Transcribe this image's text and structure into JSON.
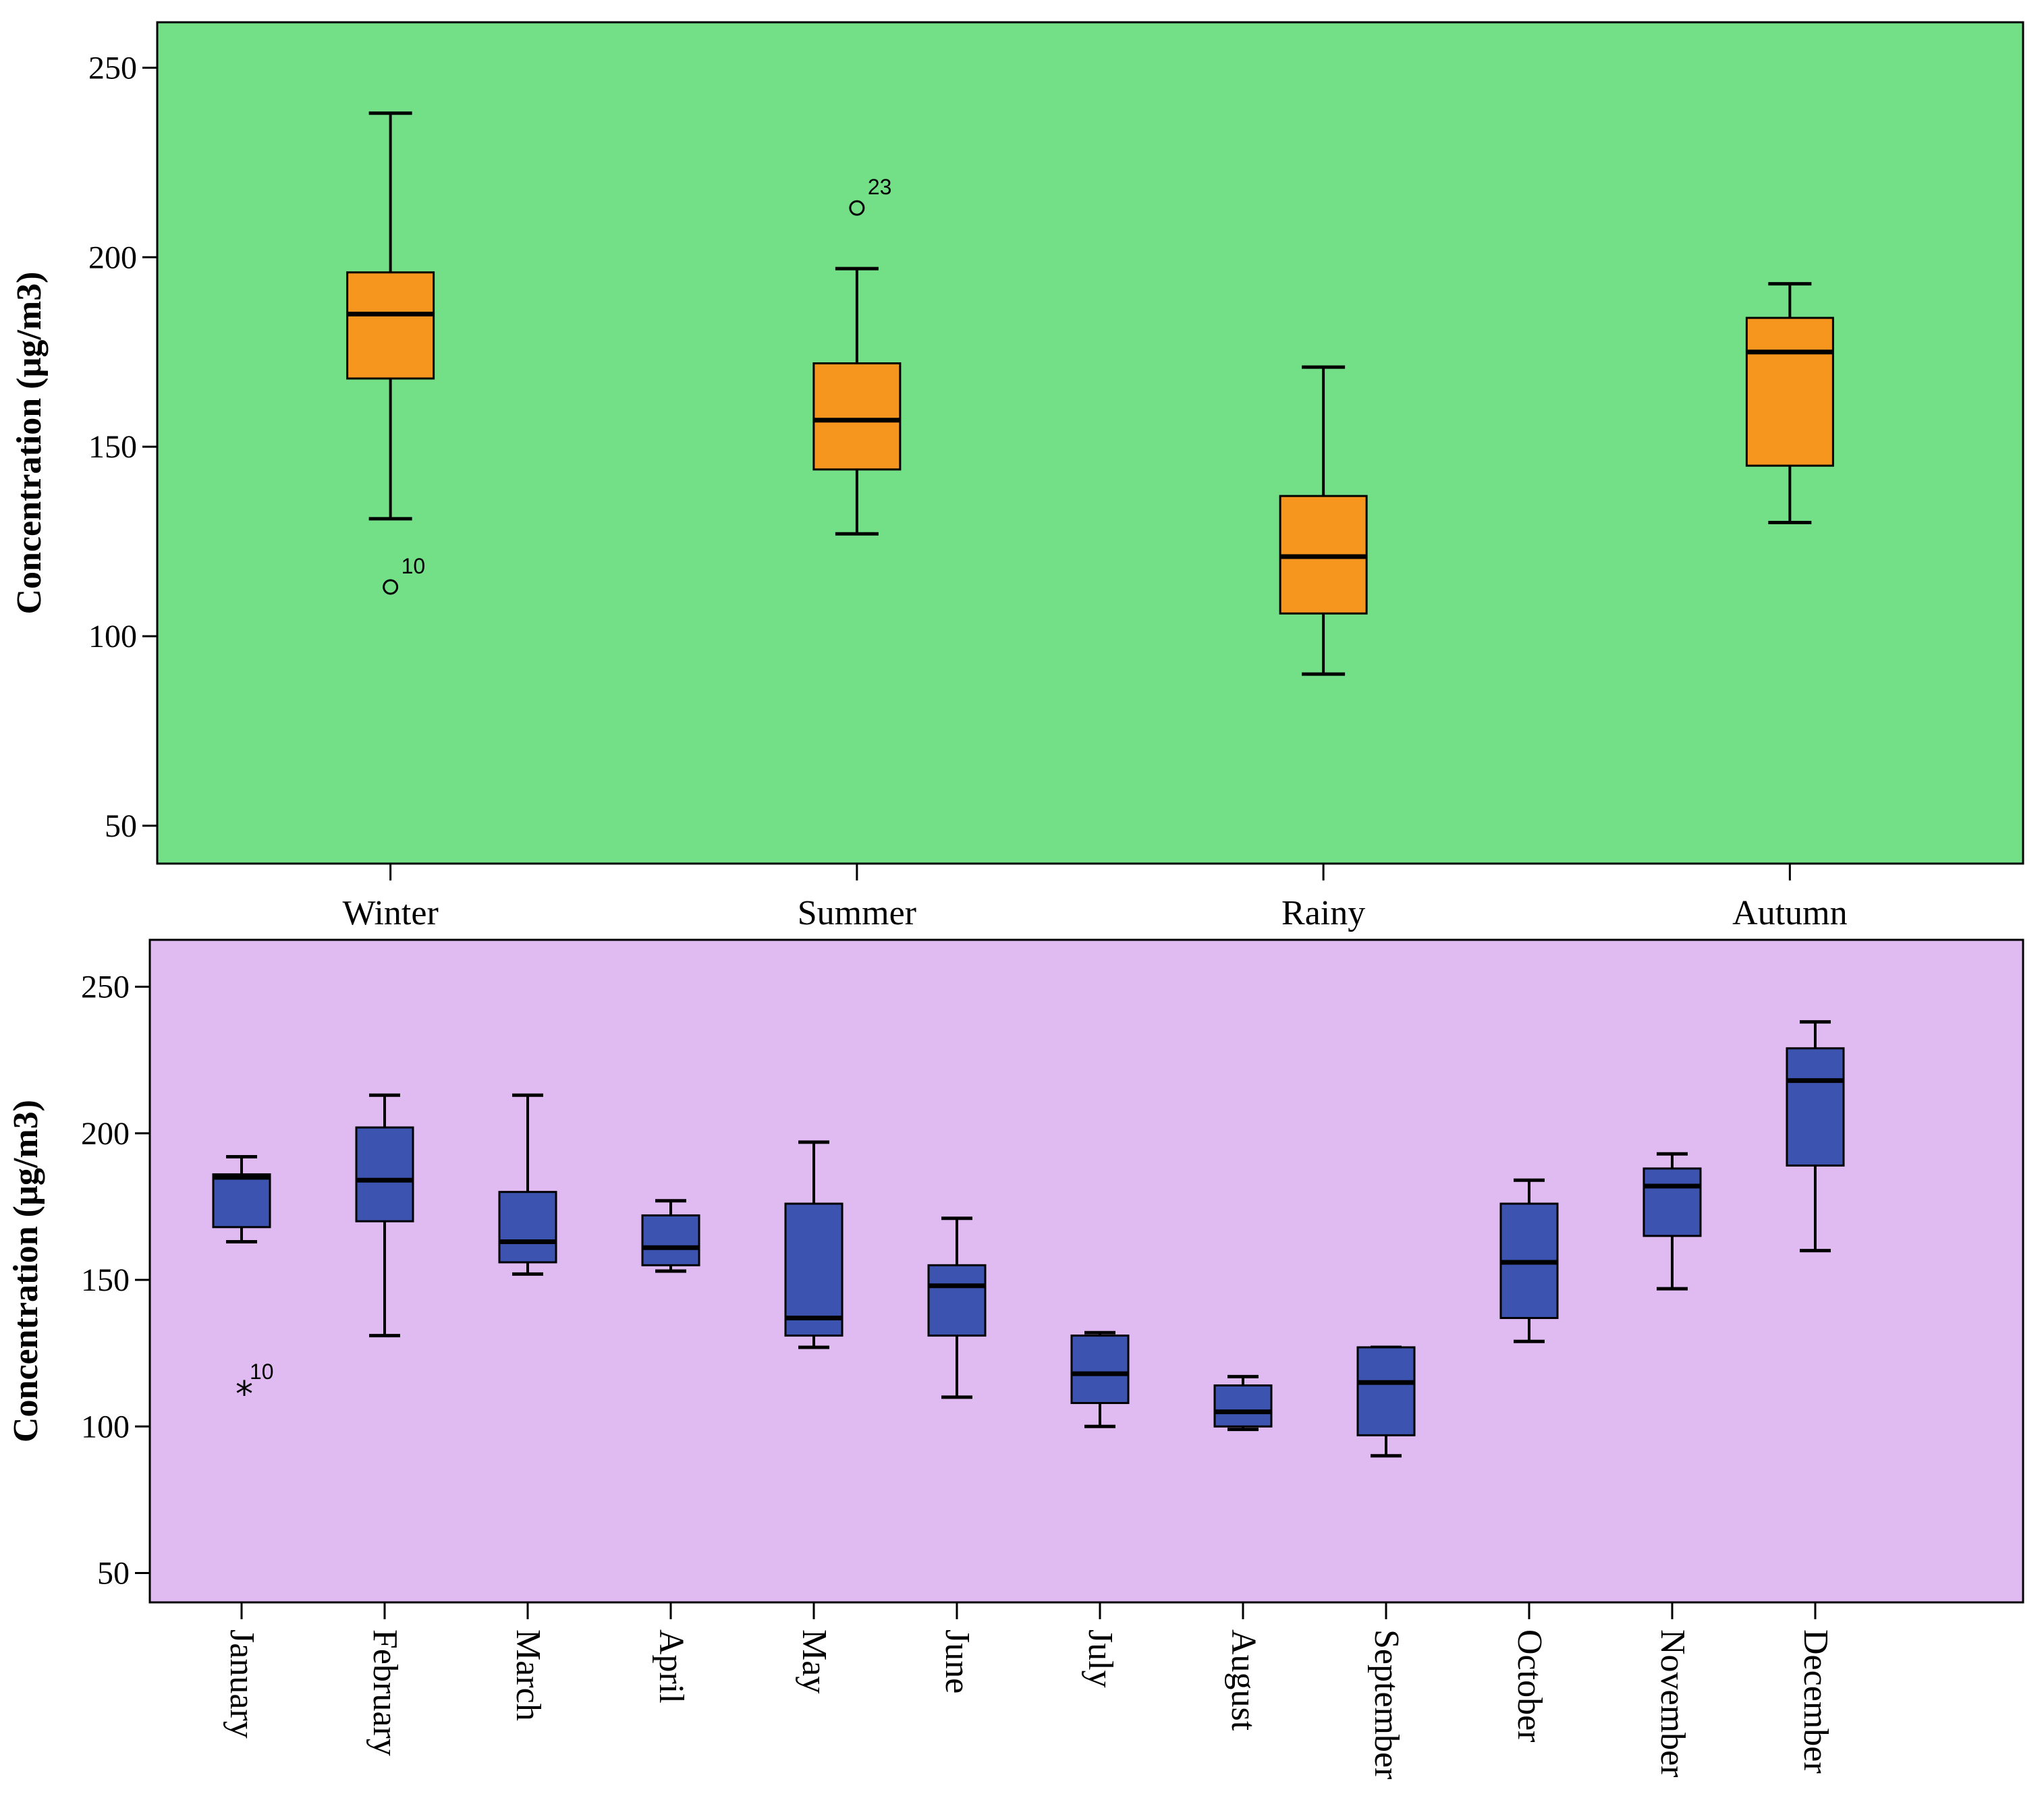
{
  "chart_data": [
    {
      "type": "boxplot",
      "ylabel": "Concentration (µg/m3)",
      "ylim": [
        40,
        262
      ],
      "yticks": [
        50,
        100,
        150,
        200,
        250
      ],
      "background": "#73df87",
      "box_color": "#f7961e",
      "categories": [
        "Winter",
        "Summer",
        "Rainy",
        "Autumn"
      ],
      "boxes": [
        {
          "label": "Winter",
          "min": 131,
          "q1": 168,
          "median": 185,
          "q3": 196,
          "max": 238
        },
        {
          "label": "Summer",
          "min": 127,
          "q1": 144,
          "median": 157,
          "q3": 172,
          "max": 197
        },
        {
          "label": "Rainy",
          "min": 90,
          "q1": 106,
          "median": 121,
          "q3": 137,
          "max": 171
        },
        {
          "label": "Autumn",
          "min": 130,
          "q1": 145,
          "median": 175,
          "q3": 184,
          "max": 193
        }
      ],
      "outliers": [
        {
          "category": "Winter",
          "value": 113,
          "label": "10",
          "marker": "circle"
        },
        {
          "category": "Summer",
          "value": 213,
          "label": "23",
          "marker": "circle"
        }
      ]
    },
    {
      "type": "boxplot",
      "ylabel": "Concentration (µg/m3)",
      "ylim": [
        40,
        266
      ],
      "yticks": [
        50,
        100,
        150,
        200,
        250
      ],
      "background": "#dfbbf1",
      "box_color": "#3c54b0",
      "categories": [
        "January",
        "February",
        "March",
        "April",
        "May",
        "June",
        "July",
        "August",
        "September",
        "October",
        "November",
        "December"
      ],
      "boxes": [
        {
          "label": "January",
          "min": 163,
          "q1": 168,
          "median": 185,
          "q3": 186,
          "max": 192
        },
        {
          "label": "February",
          "min": 131,
          "q1": 170,
          "median": 184,
          "q3": 202,
          "max": 213
        },
        {
          "label": "March",
          "min": 152,
          "q1": 156,
          "median": 163,
          "q3": 180,
          "max": 213
        },
        {
          "label": "April",
          "min": 153,
          "q1": 155,
          "median": 161,
          "q3": 172,
          "max": 177
        },
        {
          "label": "May",
          "min": 127,
          "q1": 131,
          "median": 137,
          "q3": 176,
          "max": 197
        },
        {
          "label": "June",
          "min": 110,
          "q1": 131,
          "median": 148,
          "q3": 155,
          "max": 171
        },
        {
          "label": "July",
          "min": 100,
          "q1": 108,
          "median": 118,
          "q3": 131,
          "max": 132
        },
        {
          "label": "August",
          "min": 99,
          "q1": 100,
          "median": 105,
          "q3": 114,
          "max": 117
        },
        {
          "label": "September",
          "min": 90,
          "q1": 97,
          "median": 115,
          "q3": 127,
          "max": 127
        },
        {
          "label": "October",
          "min": 129,
          "q1": 137,
          "median": 156,
          "q3": 176,
          "max": 184
        },
        {
          "label": "November",
          "min": 147,
          "q1": 165,
          "median": 182,
          "q3": 188,
          "max": 193
        },
        {
          "label": "December",
          "min": 160,
          "q1": 189,
          "median": 218,
          "q3": 229,
          "max": 238
        }
      ],
      "outliers": [
        {
          "category": "January",
          "value": 113,
          "label": "10",
          "marker": "star"
        }
      ]
    }
  ]
}
